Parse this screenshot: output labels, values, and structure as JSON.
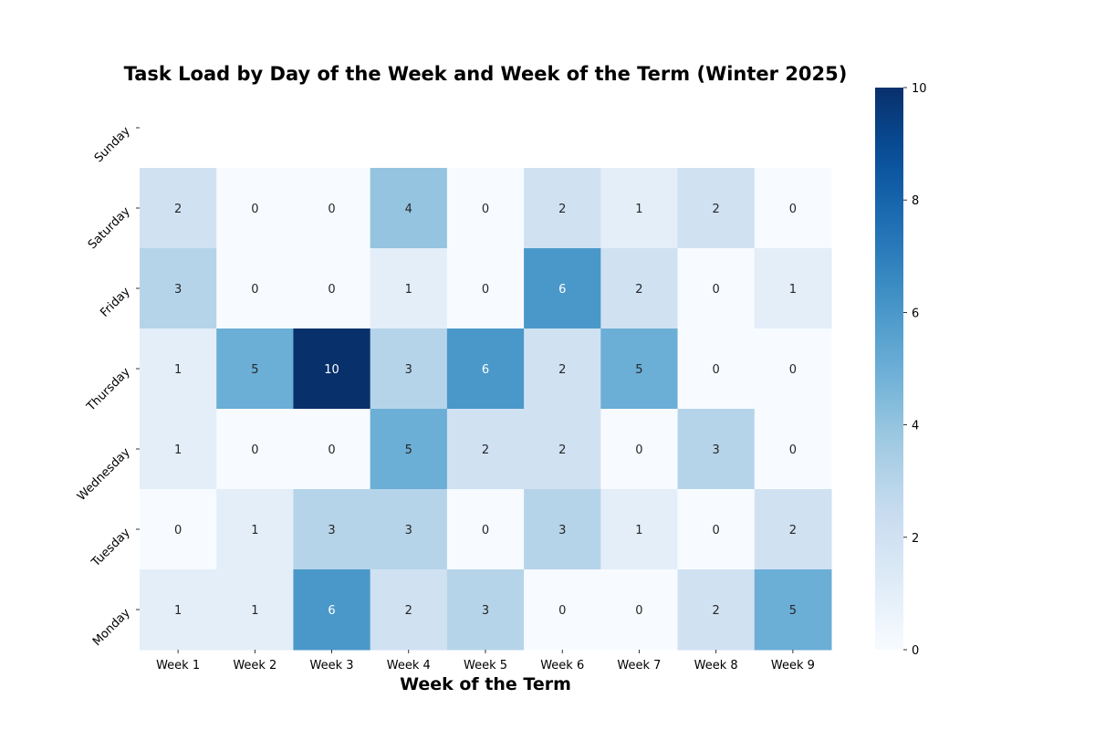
{
  "chart_data": {
    "type": "heatmap",
    "title": "Task Load by Day of the Week and Week of the Term (Winter 2025)",
    "xlabel": "Week of the Term",
    "ylabel": "",
    "x_categories": [
      "Week 1",
      "Week 2",
      "Week 3",
      "Week 4",
      "Week 5",
      "Week 6",
      "Week 7",
      "Week 8",
      "Week 9"
    ],
    "y_categories": [
      "Sunday",
      "Saturday",
      "Friday",
      "Thursday",
      "Wednesday",
      "Tuesday",
      "Monday"
    ],
    "values": [
      [
        null,
        null,
        null,
        null,
        null,
        null,
        null,
        null,
        null
      ],
      [
        2,
        0,
        0,
        4,
        0,
        2,
        1,
        2,
        0
      ],
      [
        3,
        0,
        0,
        1,
        0,
        6,
        2,
        0,
        1
      ],
      [
        1,
        5,
        10,
        3,
        6,
        2,
        5,
        0,
        0
      ],
      [
        1,
        0,
        0,
        5,
        2,
        2,
        0,
        3,
        0
      ],
      [
        0,
        1,
        3,
        3,
        0,
        3,
        1,
        0,
        2
      ],
      [
        1,
        1,
        6,
        2,
        3,
        0,
        0,
        2,
        5
      ]
    ],
    "colorbar": {
      "min": 0,
      "max": 10,
      "ticks": [
        0,
        2,
        4,
        6,
        8,
        10
      ],
      "colormap": "Blues"
    },
    "annotations": true
  }
}
